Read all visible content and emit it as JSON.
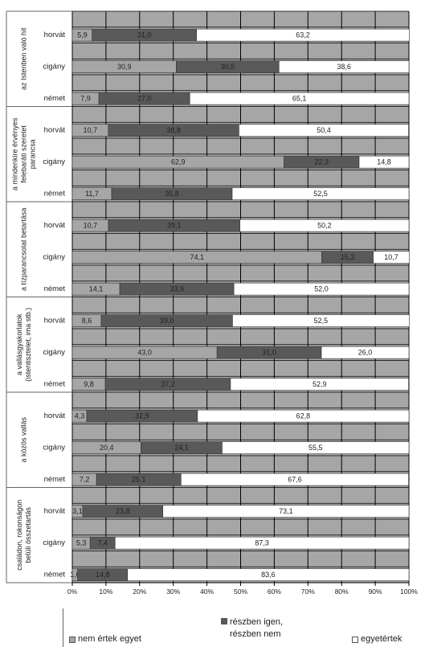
{
  "chart_data": {
    "type": "bar",
    "orientation": "horizontal",
    "stacked": "percent",
    "groups": [
      {
        "label": "az Istenben való hit",
        "rows": [
          {
            "category": "horvát",
            "values": [
              5.9,
              31.0,
              63.2
            ]
          },
          {
            "category": "cigány",
            "values": [
              30.9,
              30.5,
              38.6
            ]
          },
          {
            "category": "német",
            "values": [
              7.9,
              27.0,
              65.1
            ]
          }
        ]
      },
      {
        "label": "a mindenkire érvényes felebaráti szeretet parancsa",
        "rows": [
          {
            "category": "horvát",
            "values": [
              10.7,
              38.8,
              50.4
            ]
          },
          {
            "category": "cigány",
            "values": [
              62.9,
              22.3,
              14.8
            ]
          },
          {
            "category": "német",
            "values": [
              11.7,
              35.8,
              52.5
            ]
          }
        ]
      },
      {
        "label": "a tízparancsolat betartása",
        "rows": [
          {
            "category": "horvát",
            "values": [
              10.7,
              39.1,
              50.2
            ]
          },
          {
            "category": "cigány",
            "values": [
              74.1,
              15.3,
              10.7
            ]
          },
          {
            "category": "német",
            "values": [
              14.1,
              33.9,
              52.0
            ]
          }
        ]
      },
      {
        "label": "a vallásgyakorlatok (istentisztelet, ima stb.)",
        "rows": [
          {
            "category": "horvát",
            "values": [
              8.6,
              39.0,
              52.5
            ]
          },
          {
            "category": "cigány",
            "values": [
              43.0,
              31.0,
              26.0
            ]
          },
          {
            "category": "német",
            "values": [
              9.8,
              37.2,
              52.9
            ]
          }
        ]
      },
      {
        "label": "a közös vallás",
        "rows": [
          {
            "category": "horvát",
            "values": [
              4.3,
              32.9,
              62.8
            ]
          },
          {
            "category": "cigány",
            "values": [
              20.4,
              24.1,
              55.5
            ]
          },
          {
            "category": "német",
            "values": [
              7.2,
              25.1,
              67.6
            ]
          }
        ]
      },
      {
        "label": "családon, rokonságon belüli összetartás",
        "rows": [
          {
            "category": "horvát",
            "values": [
              3.1,
              23.8,
              73.1
            ]
          },
          {
            "category": "cigány",
            "values": [
              5.3,
              7.4,
              87.3
            ]
          },
          {
            "category": "német",
            "values": [
              1.6,
              14.8,
              83.6
            ]
          }
        ]
      }
    ],
    "value_labels": [
      [
        "5,9",
        "31,0",
        "63,2"
      ],
      [
        "30,9",
        "30,5",
        "38,6"
      ],
      [
        "7,9",
        "27,0",
        "65,1"
      ],
      [
        "10,7",
        "38,8",
        "50,4"
      ],
      [
        "62,9",
        "22,3",
        "14,8"
      ],
      [
        "11,7",
        "35,8",
        "52,5"
      ],
      [
        "10,7",
        "39,1",
        "50,2"
      ],
      [
        "74,1",
        "15,3",
        "10,7"
      ],
      [
        "14,1",
        "33,9",
        "52,0"
      ],
      [
        "8,6",
        "39,0",
        "52,5"
      ],
      [
        "43,0",
        "31,0",
        "26,0"
      ],
      [
        "9,8",
        "37,2",
        "52,9"
      ],
      [
        "4,3",
        "32,9",
        "62,8"
      ],
      [
        "20,4",
        "24,1",
        "55,5"
      ],
      [
        "7,2",
        "25,1",
        "67,6"
      ],
      [
        "3,1",
        "23,8",
        "73,1"
      ],
      [
        "5,3",
        "7,4",
        "87,3"
      ],
      [
        "1,6",
        "14,8",
        "83,6"
      ]
    ],
    "series": [
      {
        "name": "nem értek egyet",
        "color": "#a6a6a6"
      },
      {
        "name": "részben igen, részben nem",
        "color": "#595959"
      },
      {
        "name": "egyetértek",
        "color": "#ffffff"
      }
    ],
    "x_ticks": [
      "0%",
      "10%",
      "20%",
      "30%",
      "40%",
      "50%",
      "60%",
      "70%",
      "80%",
      "90%",
      "100%"
    ],
    "xlim": [
      0,
      100
    ],
    "grid": true,
    "plot_background": "#a6a6a6",
    "legend_position": "bottom"
  },
  "legend": {
    "items": [
      "nem értek egyet",
      "részben igen,",
      "részben nem",
      "egyetértek"
    ]
  }
}
